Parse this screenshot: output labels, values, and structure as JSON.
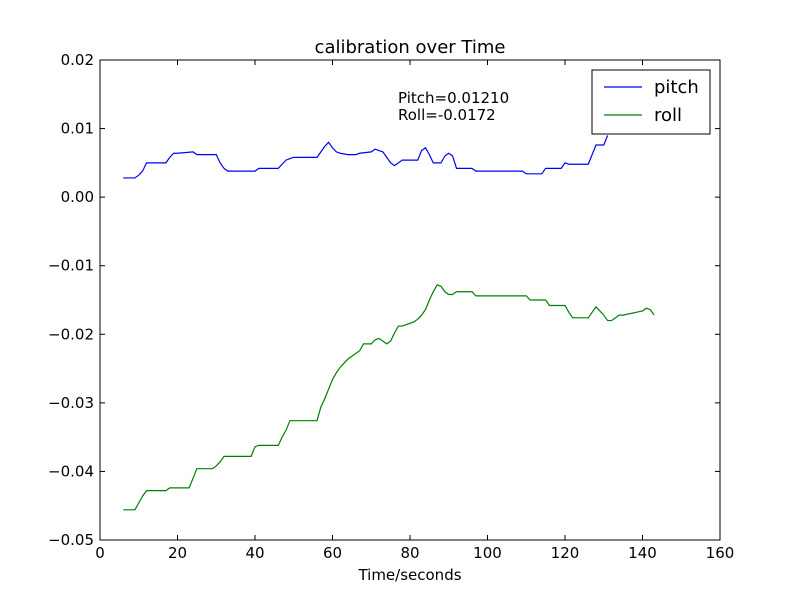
{
  "chart_data": {
    "type": "line",
    "title": "calibration over Time",
    "xlabel": "Time/seconds",
    "ylabel": "",
    "xlim": [
      0,
      160
    ],
    "ylim": [
      -0.05,
      0.02
    ],
    "xticks": [
      0,
      20,
      40,
      60,
      80,
      100,
      120,
      140,
      160
    ],
    "xtick_labels": [
      "0",
      "20",
      "40",
      "60",
      "80",
      "100",
      "120",
      "140",
      "160"
    ],
    "yticks": [
      0.02,
      0.01,
      0.0,
      -0.01,
      -0.02,
      -0.03,
      -0.04,
      -0.05
    ],
    "ytick_labels": [
      "0.02",
      "0.01",
      "0.00",
      "−0.01",
      "−0.02",
      "−0.03",
      "−0.04",
      "−0.05"
    ],
    "grid": false,
    "legend_position": "top-right",
    "annotations": [
      "Pitch=0.01210",
      "Roll=-0.0172"
    ],
    "series": [
      {
        "name": "pitch",
        "color": "#0000ff",
        "x": [
          6,
          9,
          10,
          11,
          12,
          17,
          18,
          19,
          20,
          24,
          25,
          30,
          31,
          32,
          33,
          40,
          41,
          46,
          47,
          48,
          49,
          50,
          56,
          57,
          58,
          59,
          60,
          61,
          62,
          64,
          66,
          67,
          70,
          71,
          73,
          74,
          75,
          76,
          77,
          78,
          82,
          83,
          84,
          85,
          86,
          88,
          89,
          90,
          91,
          92,
          96,
          97,
          109,
          110,
          114,
          115,
          119,
          120,
          121,
          126,
          127,
          128,
          130,
          131
        ],
        "y": [
          0.0028,
          0.0028,
          0.0032,
          0.0038,
          0.005,
          0.005,
          0.0058,
          0.0064,
          0.0064,
          0.0066,
          0.0062,
          0.0062,
          0.005,
          0.0042,
          0.0038,
          0.0038,
          0.0042,
          0.0042,
          0.0048,
          0.0054,
          0.0056,
          0.0058,
          0.0058,
          0.0066,
          0.0074,
          0.008,
          0.0072,
          0.0066,
          0.0064,
          0.0062,
          0.0062,
          0.0064,
          0.0066,
          0.007,
          0.0066,
          0.0058,
          0.005,
          0.0046,
          0.005,
          0.0054,
          0.0054,
          0.0068,
          0.0072,
          0.0062,
          0.005,
          0.005,
          0.006,
          0.0064,
          0.006,
          0.0042,
          0.0042,
          0.0038,
          0.0038,
          0.0034,
          0.0034,
          0.0042,
          0.0042,
          0.005,
          0.0048,
          0.0048,
          0.0062,
          0.0076,
          0.0076,
          0.009
        ]
      },
      {
        "name": "roll",
        "color": "#008000",
        "x": [
          6,
          9,
          10,
          11,
          12,
          17,
          18,
          19,
          23,
          24,
          25,
          29,
          30,
          31,
          32,
          33,
          39,
          40,
          41,
          46,
          47,
          48,
          49,
          56,
          57,
          58,
          59,
          60,
          61,
          62,
          63,
          64,
          65,
          66,
          67,
          68,
          70,
          71,
          72,
          73,
          74,
          75,
          76,
          77,
          78,
          81,
          82,
          83,
          84,
          85,
          86,
          87,
          88,
          89,
          90,
          91,
          92,
          96,
          97,
          110,
          111,
          115,
          116,
          120,
          121,
          122,
          126,
          127,
          128,
          130,
          131,
          132,
          134,
          135,
          140,
          141,
          142,
          143
        ],
        "y": [
          -0.0456,
          -0.0456,
          -0.0446,
          -0.0436,
          -0.0428,
          -0.0428,
          -0.0424,
          -0.0424,
          -0.0424,
          -0.041,
          -0.0396,
          -0.0396,
          -0.0392,
          -0.0386,
          -0.0378,
          -0.0378,
          -0.0378,
          -0.0364,
          -0.0362,
          -0.0362,
          -0.035,
          -0.034,
          -0.0326,
          -0.0326,
          -0.0306,
          -0.0294,
          -0.028,
          -0.0266,
          -0.0256,
          -0.0248,
          -0.0242,
          -0.0236,
          -0.0232,
          -0.0228,
          -0.0224,
          -0.0214,
          -0.0214,
          -0.0208,
          -0.0206,
          -0.021,
          -0.0214,
          -0.021,
          -0.0198,
          -0.0188,
          -0.0188,
          -0.0182,
          -0.0178,
          -0.0172,
          -0.0164,
          -0.015,
          -0.0138,
          -0.0128,
          -0.013,
          -0.0138,
          -0.0142,
          -0.0142,
          -0.0138,
          -0.0138,
          -0.0144,
          -0.0144,
          -0.015,
          -0.015,
          -0.0158,
          -0.0158,
          -0.0168,
          -0.0176,
          -0.0176,
          -0.0168,
          -0.016,
          -0.0172,
          -0.018,
          -0.018,
          -0.0172,
          -0.0172,
          -0.0166,
          -0.0162,
          -0.0164,
          -0.0172
        ]
      }
    ]
  }
}
